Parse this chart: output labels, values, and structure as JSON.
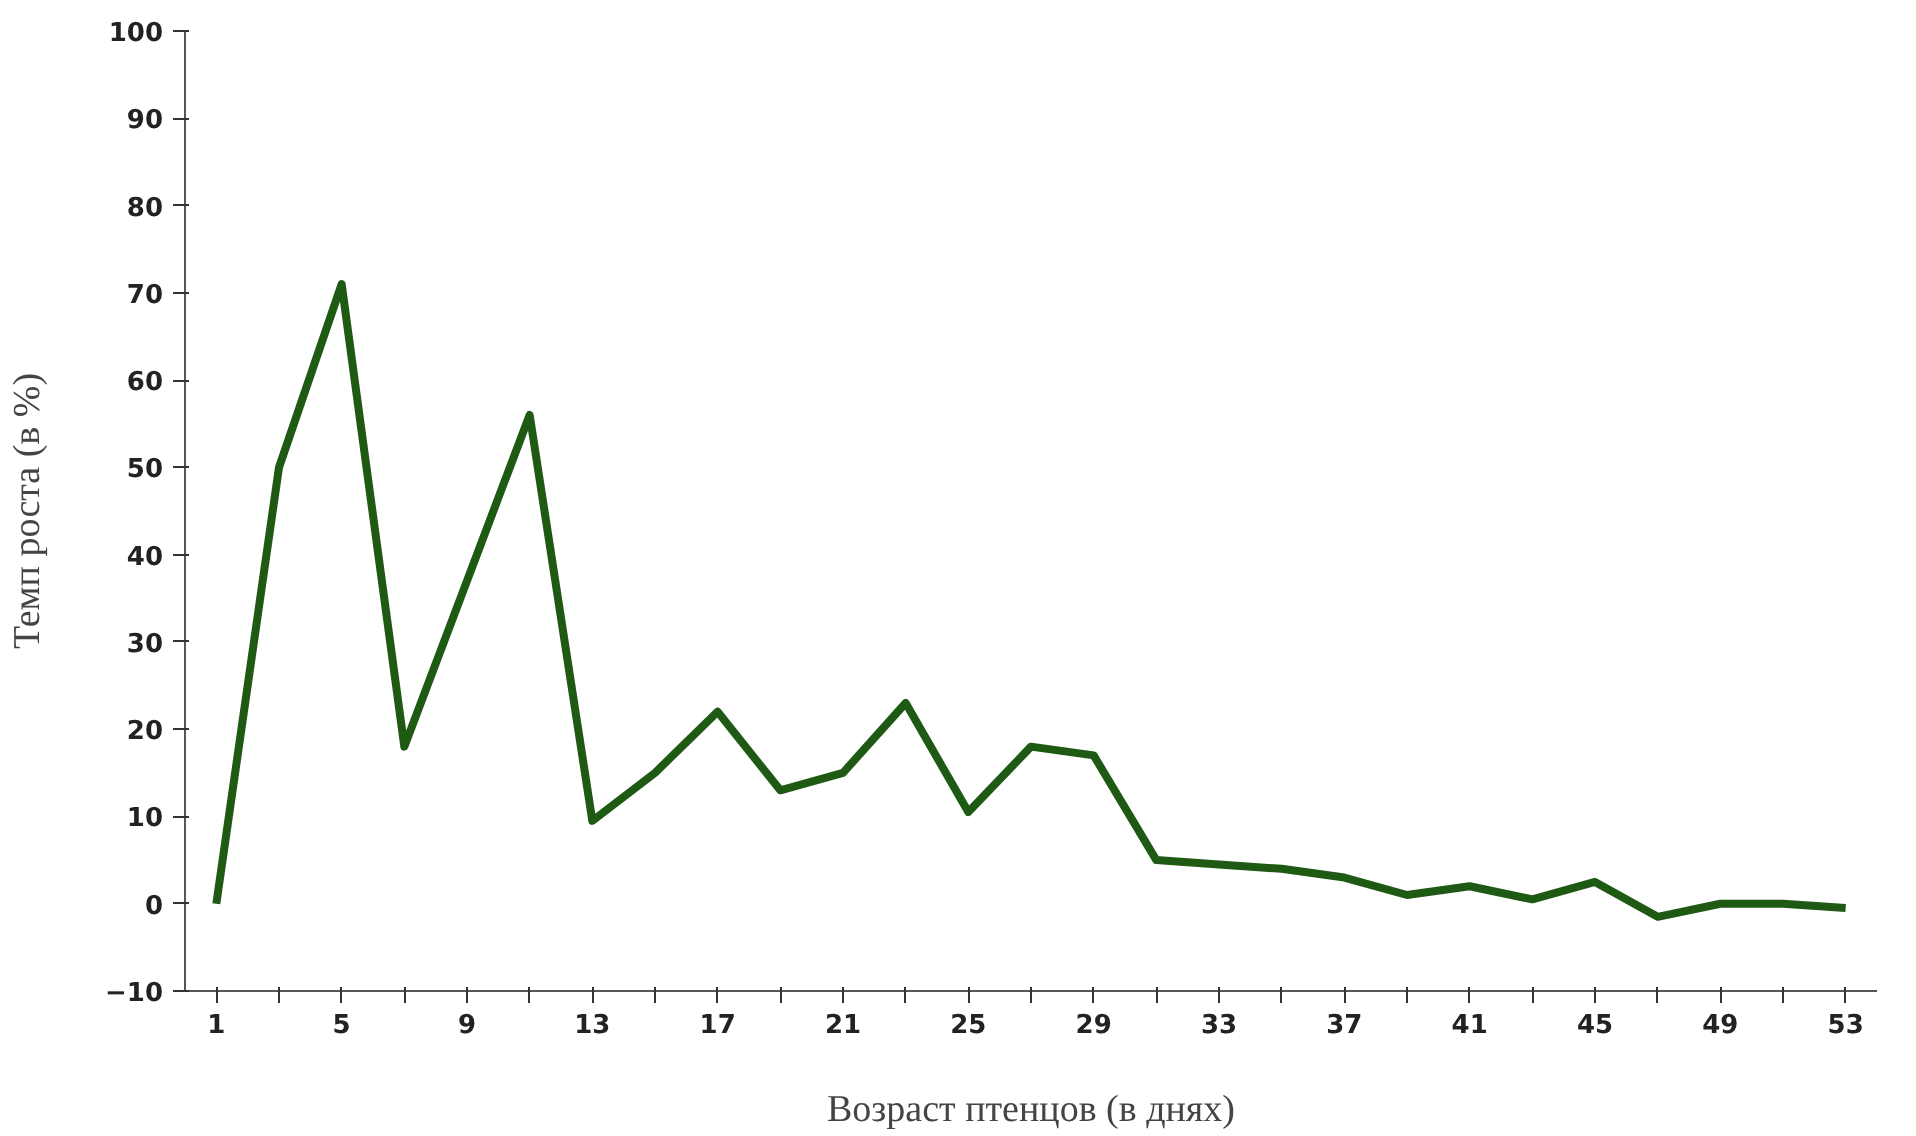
{
  "chart_data": {
    "type": "line",
    "xlabel": "Возраст птенцов (в днях)",
    "ylabel": "Темп роста (в %)",
    "categories": [
      "1",
      null,
      "5",
      null,
      "9",
      null,
      "13",
      null,
      "17",
      null,
      "21",
      null,
      "25",
      null,
      "29",
      null,
      "33",
      null,
      "37",
      null,
      "41",
      null,
      "45",
      null,
      "49",
      null,
      "53"
    ],
    "series": [
      {
        "color": "#1e5a14",
        "values": [
          0,
          50,
          71,
          18,
          37,
          56,
          9.5,
          15,
          22,
          13,
          15,
          23,
          10.5,
          18,
          17,
          5,
          4.5,
          4,
          3,
          1,
          2,
          0.5,
          2.5,
          -1.5,
          0,
          0,
          -0.5
        ]
      }
    ],
    "ylim": [
      -10,
      100
    ],
    "yticks": [
      -10,
      0,
      10,
      20,
      30,
      40,
      50,
      60,
      70,
      80,
      90,
      100
    ],
    "grid": false,
    "marker": "none",
    "line_style": "solid"
  }
}
